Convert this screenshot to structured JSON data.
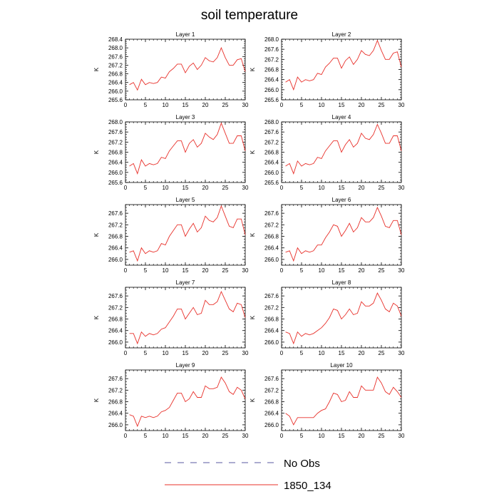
{
  "title": "soil temperature",
  "ylabel": "K",
  "legend": {
    "placement": "bottom-center",
    "items": [
      {
        "label": "No Obs",
        "style": "dashed",
        "color": "#5a5aa0"
      },
      {
        "label": "1850_134",
        "style": "solid",
        "color": "#e8302a"
      }
    ]
  },
  "chart_data": [
    {
      "type": "line",
      "title": "Layer 1",
      "ylabel": "K",
      "xlim": [
        0,
        30
      ],
      "ylim": [
        265.6,
        268.4
      ],
      "xticks": [
        0,
        5,
        10,
        15,
        20,
        25,
        30
      ],
      "yticks": [
        "265.6",
        "266.0",
        "266.4",
        "266.8",
        "267.2",
        "267.6",
        "268.0",
        "268.4"
      ],
      "series": [
        {
          "color": "#e8302a",
          "x": [
            1,
            2,
            3,
            4,
            5,
            6,
            7,
            8,
            9,
            10,
            11,
            12,
            13,
            14,
            15,
            16,
            17,
            18,
            19,
            20,
            21,
            22,
            23,
            24,
            25,
            26,
            27,
            28,
            29,
            30
          ],
          "values": [
            266.3,
            266.4,
            266.05,
            266.55,
            266.3,
            266.4,
            266.35,
            266.4,
            266.65,
            266.6,
            266.9,
            267.05,
            267.25,
            267.25,
            266.85,
            267.15,
            267.3,
            267.0,
            267.2,
            267.55,
            267.4,
            267.35,
            267.55,
            268.0,
            267.55,
            267.2,
            267.2,
            267.45,
            267.5,
            266.9
          ]
        }
      ]
    },
    {
      "type": "line",
      "title": "Layer 2",
      "ylabel": "K",
      "xlim": [
        0,
        30
      ],
      "ylim": [
        265.6,
        268.0
      ],
      "xticks": [
        0,
        5,
        10,
        15,
        20,
        25,
        30
      ],
      "yticks": [
        "265.6",
        "266.0",
        "266.4",
        "266.8",
        "267.2",
        "267.6",
        "268.0"
      ],
      "series": [
        {
          "color": "#e8302a",
          "x": [
            1,
            2,
            3,
            4,
            5,
            6,
            7,
            8,
            9,
            10,
            11,
            12,
            13,
            14,
            15,
            16,
            17,
            18,
            19,
            20,
            21,
            22,
            23,
            24,
            25,
            26,
            27,
            28,
            29,
            30
          ],
          "values": [
            266.3,
            266.4,
            266.0,
            266.5,
            266.3,
            266.4,
            266.35,
            266.4,
            266.65,
            266.6,
            266.9,
            267.05,
            267.25,
            267.25,
            266.85,
            267.15,
            267.3,
            267.0,
            267.2,
            267.55,
            267.4,
            267.35,
            267.55,
            267.95,
            267.55,
            267.2,
            267.2,
            267.45,
            267.5,
            266.9
          ]
        }
      ]
    },
    {
      "type": "line",
      "title": "Layer 3",
      "ylabel": "K",
      "xlim": [
        0,
        30
      ],
      "ylim": [
        265.6,
        268.0
      ],
      "xticks": [
        0,
        5,
        10,
        15,
        20,
        25,
        30
      ],
      "yticks": [
        "265.6",
        "266.0",
        "266.4",
        "266.8",
        "267.2",
        "267.6",
        "268.0"
      ],
      "series": [
        {
          "color": "#e8302a",
          "x": [
            1,
            2,
            3,
            4,
            5,
            6,
            7,
            8,
            9,
            10,
            11,
            12,
            13,
            14,
            15,
            16,
            17,
            18,
            19,
            20,
            21,
            22,
            23,
            24,
            25,
            26,
            27,
            28,
            29,
            30
          ],
          "values": [
            266.25,
            266.35,
            265.95,
            266.5,
            266.25,
            266.35,
            266.3,
            266.35,
            266.6,
            266.55,
            266.85,
            267.05,
            267.25,
            267.25,
            266.8,
            267.15,
            267.3,
            267.0,
            267.15,
            267.55,
            267.4,
            267.3,
            267.5,
            267.95,
            267.55,
            267.15,
            267.15,
            267.45,
            267.45,
            266.85
          ]
        }
      ]
    },
    {
      "type": "line",
      "title": "Layer 4",
      "ylabel": "K",
      "xlim": [
        0,
        30
      ],
      "ylim": [
        265.6,
        268.0
      ],
      "xticks": [
        0,
        5,
        10,
        15,
        20,
        25,
        30
      ],
      "yticks": [
        "265.6",
        "266.0",
        "266.4",
        "266.8",
        "267.2",
        "267.6",
        "268.0"
      ],
      "series": [
        {
          "color": "#e8302a",
          "x": [
            1,
            2,
            3,
            4,
            5,
            6,
            7,
            8,
            9,
            10,
            11,
            12,
            13,
            14,
            15,
            16,
            17,
            18,
            19,
            20,
            21,
            22,
            23,
            24,
            25,
            26,
            27,
            28,
            29,
            30
          ],
          "values": [
            266.25,
            266.35,
            265.95,
            266.45,
            266.25,
            266.35,
            266.3,
            266.35,
            266.6,
            266.55,
            266.85,
            267.05,
            267.25,
            267.25,
            266.8,
            267.1,
            267.3,
            267.0,
            267.15,
            267.55,
            267.35,
            267.3,
            267.5,
            267.9,
            267.55,
            267.15,
            267.15,
            267.45,
            267.45,
            266.85
          ]
        }
      ]
    },
    {
      "type": "line",
      "title": "Layer 5",
      "ylabel": "K",
      "xlim": [
        0,
        30
      ],
      "ylim": [
        265.8,
        267.9
      ],
      "xticks": [
        0,
        5,
        10,
        15,
        20,
        25,
        30
      ],
      "yticks": [
        "266.0",
        "266.4",
        "266.8",
        "267.2",
        "267.6"
      ],
      "series": [
        {
          "color": "#e8302a",
          "x": [
            1,
            2,
            3,
            4,
            5,
            6,
            7,
            8,
            9,
            10,
            11,
            12,
            13,
            14,
            15,
            16,
            17,
            18,
            19,
            20,
            21,
            22,
            23,
            24,
            25,
            26,
            27,
            28,
            29,
            30
          ],
          "values": [
            266.25,
            266.3,
            265.95,
            266.4,
            266.2,
            266.3,
            266.25,
            266.3,
            266.55,
            266.5,
            266.8,
            267.0,
            267.2,
            267.2,
            266.8,
            267.05,
            267.25,
            266.95,
            267.1,
            267.5,
            267.35,
            267.3,
            267.45,
            267.85,
            267.5,
            267.15,
            267.1,
            267.4,
            267.4,
            266.85
          ]
        }
      ]
    },
    {
      "type": "line",
      "title": "Layer 6",
      "ylabel": "K",
      "xlim": [
        0,
        30
      ],
      "ylim": [
        265.8,
        267.9
      ],
      "xticks": [
        0,
        5,
        10,
        15,
        20,
        25,
        30
      ],
      "yticks": [
        "266.0",
        "266.4",
        "266.8",
        "267.2",
        "267.6"
      ],
      "series": [
        {
          "color": "#e8302a",
          "x": [
            1,
            2,
            3,
            4,
            5,
            6,
            7,
            8,
            9,
            10,
            11,
            12,
            13,
            14,
            15,
            16,
            17,
            18,
            19,
            20,
            21,
            22,
            23,
            24,
            25,
            26,
            27,
            28,
            29,
            30
          ],
          "values": [
            266.25,
            266.3,
            265.95,
            266.4,
            266.2,
            266.3,
            266.25,
            266.3,
            266.5,
            266.5,
            266.75,
            266.95,
            267.2,
            267.15,
            266.8,
            267.0,
            267.25,
            266.95,
            267.1,
            267.45,
            267.3,
            267.3,
            267.45,
            267.8,
            267.5,
            267.15,
            267.1,
            267.35,
            267.35,
            266.85
          ]
        }
      ]
    },
    {
      "type": "line",
      "title": "Layer 7",
      "ylabel": "K",
      "xlim": [
        0,
        30
      ],
      "ylim": [
        265.8,
        267.9
      ],
      "xticks": [
        0,
        5,
        10,
        15,
        20,
        25,
        30
      ],
      "yticks": [
        "266.0",
        "266.4",
        "266.8",
        "267.2",
        "267.6"
      ],
      "series": [
        {
          "color": "#e8302a",
          "x": [
            1,
            2,
            3,
            4,
            5,
            6,
            7,
            8,
            9,
            10,
            11,
            12,
            13,
            14,
            15,
            16,
            17,
            18,
            19,
            20,
            21,
            22,
            23,
            24,
            25,
            26,
            27,
            28,
            29,
            30
          ],
          "values": [
            266.3,
            266.3,
            265.95,
            266.35,
            266.2,
            266.3,
            266.25,
            266.3,
            266.45,
            266.5,
            266.7,
            266.9,
            267.15,
            267.15,
            266.8,
            267.0,
            267.2,
            266.95,
            267.0,
            267.45,
            267.3,
            267.3,
            267.4,
            267.75,
            267.45,
            267.15,
            267.05,
            267.35,
            267.3,
            266.85
          ]
        }
      ]
    },
    {
      "type": "line",
      "title": "Layer 8",
      "ylabel": "K",
      "xlim": [
        0,
        30
      ],
      "ylim": [
        265.8,
        267.9
      ],
      "xticks": [
        0,
        5,
        10,
        15,
        20,
        25,
        30
      ],
      "yticks": [
        "266.0",
        "266.4",
        "266.8",
        "267.2",
        "267.6"
      ],
      "series": [
        {
          "color": "#e8302a",
          "x": [
            1,
            2,
            3,
            4,
            5,
            6,
            7,
            8,
            9,
            10,
            11,
            12,
            13,
            14,
            15,
            16,
            17,
            18,
            19,
            20,
            21,
            22,
            23,
            24,
            25,
            26,
            27,
            28,
            29,
            30
          ],
          "values": [
            266.35,
            266.3,
            265.95,
            266.35,
            266.2,
            266.3,
            266.25,
            266.3,
            266.4,
            266.5,
            266.65,
            266.85,
            267.15,
            267.1,
            266.8,
            266.95,
            267.15,
            266.95,
            267.0,
            267.4,
            267.25,
            267.25,
            267.35,
            267.7,
            267.45,
            267.15,
            267.05,
            267.35,
            267.25,
            266.9
          ]
        }
      ]
    },
    {
      "type": "line",
      "title": "Layer 9",
      "ylabel": "K",
      "xlim": [
        0,
        30
      ],
      "ylim": [
        265.8,
        267.9
      ],
      "xticks": [
        0,
        5,
        10,
        15,
        20,
        25,
        30
      ],
      "yticks": [
        "266.0",
        "266.4",
        "266.8",
        "267.2",
        "267.6"
      ],
      "series": [
        {
          "color": "#e8302a",
          "x": [
            1,
            2,
            3,
            4,
            5,
            6,
            7,
            8,
            9,
            10,
            11,
            12,
            13,
            14,
            15,
            16,
            17,
            18,
            19,
            20,
            21,
            22,
            23,
            24,
            25,
            26,
            27,
            28,
            29,
            30
          ],
          "values": [
            266.35,
            266.3,
            265.95,
            266.3,
            266.25,
            266.3,
            266.25,
            266.3,
            266.45,
            266.5,
            266.6,
            266.85,
            267.1,
            267.1,
            266.8,
            266.9,
            267.15,
            266.95,
            266.95,
            267.35,
            267.25,
            267.25,
            267.3,
            267.65,
            267.45,
            267.15,
            267.05,
            267.3,
            267.2,
            266.9
          ]
        }
      ]
    },
    {
      "type": "line",
      "title": "Layer 10",
      "ylabel": "K",
      "xlim": [
        0,
        30
      ],
      "ylim": [
        265.8,
        267.9
      ],
      "xticks": [
        0,
        5,
        10,
        15,
        20,
        25,
        30
      ],
      "yticks": [
        "266.0",
        "266.4",
        "266.8",
        "267.2",
        "267.6"
      ],
      "series": [
        {
          "color": "#e8302a",
          "x": [
            1,
            2,
            3,
            4,
            5,
            6,
            7,
            8,
            9,
            10,
            11,
            12,
            13,
            14,
            15,
            16,
            17,
            18,
            19,
            20,
            21,
            22,
            23,
            24,
            25,
            26,
            27,
            28,
            29,
            30
          ],
          "values": [
            266.4,
            266.3,
            266.0,
            266.25,
            266.25,
            266.25,
            266.25,
            266.25,
            266.4,
            266.5,
            266.55,
            266.8,
            267.1,
            267.05,
            266.8,
            266.85,
            267.15,
            266.95,
            266.95,
            267.35,
            267.2,
            267.2,
            267.2,
            267.65,
            267.45,
            267.15,
            267.05,
            267.3,
            267.15,
            266.95
          ]
        }
      ]
    }
  ]
}
